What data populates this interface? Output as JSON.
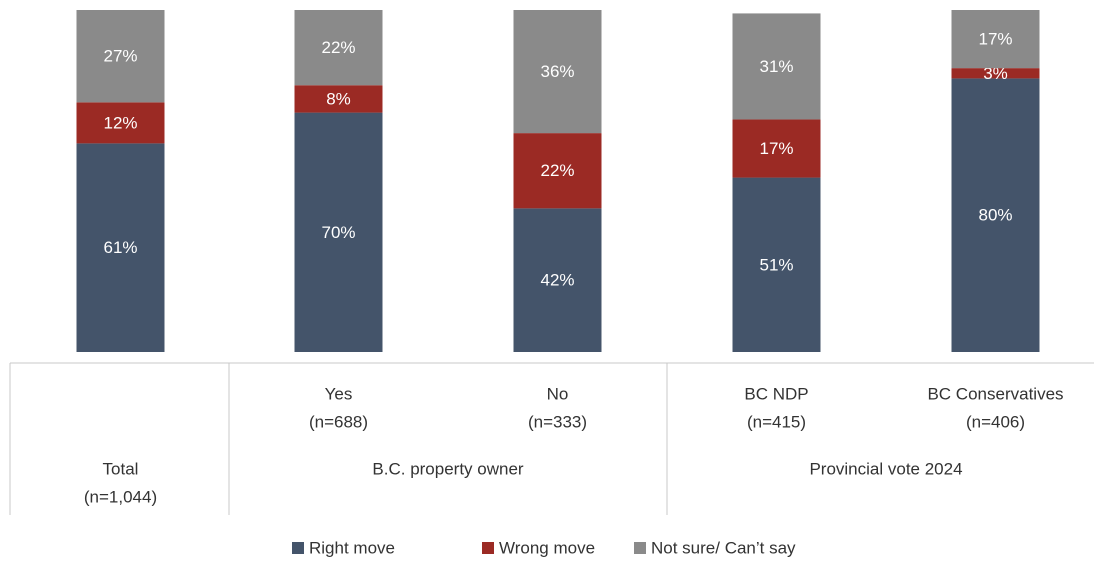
{
  "chart_data": {
    "type": "bar",
    "stacked": true,
    "categories": [
      "Total",
      "Yes",
      "No",
      "BC NDP",
      "BC Conservatives"
    ],
    "sample_sizes": [
      "(n=1,044)",
      "(n=688)",
      "(n=333)",
      "(n=415)",
      "(n=406)"
    ],
    "groups": [
      {
        "name": "B.C. property owner",
        "members": [
          1,
          2
        ]
      },
      {
        "name": "Provincial vote 2024",
        "members": [
          3,
          4
        ]
      }
    ],
    "series": [
      {
        "name": "Right move",
        "color": "#44546a",
        "values": [
          61,
          70,
          42,
          51,
          80
        ],
        "value_labels": [
          "61%",
          "70%",
          "42%",
          "51%",
          "80%"
        ]
      },
      {
        "name": "Wrong move",
        "color": "#9b2a24",
        "values": [
          12,
          8,
          22,
          17,
          3
        ],
        "value_labels": [
          "12%",
          "8%",
          "22%",
          "17%",
          "3%"
        ]
      },
      {
        "name": "Not sure/ Can’t say",
        "color": "#8a8a8a",
        "values": [
          27,
          22,
          36,
          31,
          17
        ],
        "value_labels": [
          "27%",
          "22%",
          "36%",
          "31%",
          "17%"
        ]
      }
    ],
    "ylim": [
      0,
      100
    ],
    "legend": "bottom"
  }
}
